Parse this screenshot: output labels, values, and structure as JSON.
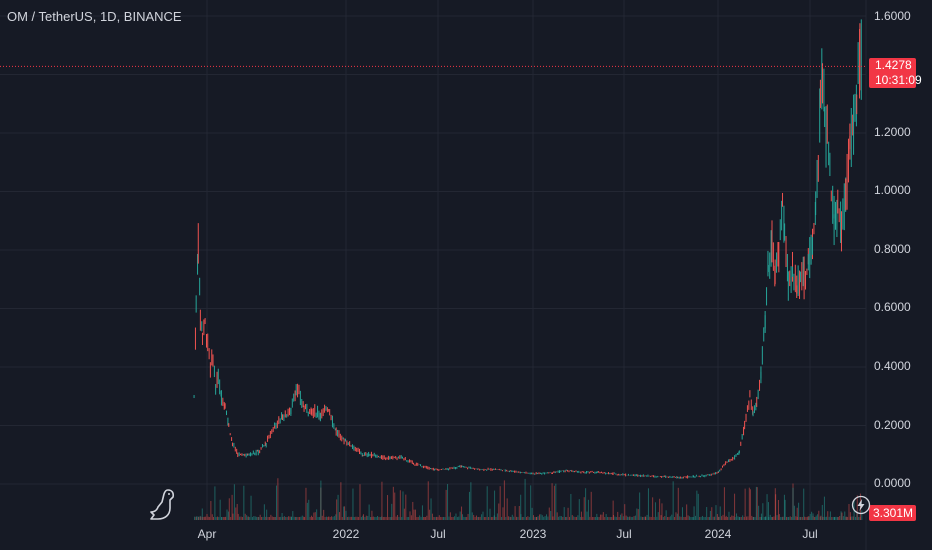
{
  "header": {
    "symbol_line": "OM / TetherUS, 1D, BINANCE"
  },
  "price_axis": {
    "ticks": [
      "1.6000",
      "1.2000",
      "1.0000",
      "0.8000",
      "0.6000",
      "0.4000",
      "0.2000",
      "0.0000"
    ],
    "last_price": "1.4278",
    "countdown": "10:31:09"
  },
  "volume": {
    "last_label": "3.301M"
  },
  "time_axis": {
    "labels": [
      "Apr",
      "2022",
      "Jul",
      "2023",
      "Jul",
      "2024",
      "Jul"
    ]
  },
  "colors": {
    "up": "#26a69a",
    "down": "#ef5350",
    "background": "#161a25",
    "grid": "#232733",
    "tag": "#f23645"
  },
  "icons": {
    "logo": "tradingview-dino-icon",
    "replay": "lightning-icon"
  },
  "chart_data": {
    "type": "candlestick",
    "title": "OM / TetherUS, 1D, BINANCE",
    "ylim": [
      -0.04,
      1.67
    ],
    "grid": true,
    "x_range": [
      "2021-03-08",
      "2024-08-30"
    ],
    "series": [
      {
        "name": "OM / TetherUS",
        "points": [
          [
            "2021-03-10",
            0.3
          ],
          [
            "2021-03-14",
            0.6
          ],
          [
            "2021-03-18",
            0.85
          ],
          [
            "2021-03-22",
            0.58
          ],
          [
            "2021-03-26",
            0.52
          ],
          [
            "2021-03-31",
            0.55
          ],
          [
            "2021-04-05",
            0.48
          ],
          [
            "2021-04-10",
            0.4
          ],
          [
            "2021-04-15",
            0.43
          ],
          [
            "2021-04-20",
            0.33
          ],
          [
            "2021-04-25",
            0.36
          ],
          [
            "2021-05-01",
            0.3
          ],
          [
            "2021-05-08",
            0.27
          ],
          [
            "2021-05-15",
            0.2
          ],
          [
            "2021-05-22",
            0.14
          ],
          [
            "2021-06-01",
            0.1
          ],
          [
            "2021-06-20",
            0.1
          ],
          [
            "2021-07-10",
            0.11
          ],
          [
            "2021-07-25",
            0.14
          ],
          [
            "2021-08-10",
            0.2
          ],
          [
            "2021-08-25",
            0.23
          ],
          [
            "2021-09-10",
            0.25
          ],
          [
            "2021-09-20",
            0.33
          ],
          [
            "2021-10-05",
            0.26
          ],
          [
            "2021-10-20",
            0.25
          ],
          [
            "2021-11-05",
            0.24
          ],
          [
            "2021-11-20",
            0.26
          ],
          [
            "2021-12-05",
            0.18
          ],
          [
            "2021-12-20",
            0.15
          ],
          [
            "2022-01-05",
            0.13
          ],
          [
            "2022-01-25",
            0.1
          ],
          [
            "2022-02-10",
            0.1
          ],
          [
            "2022-03-01",
            0.09
          ],
          [
            "2022-03-20",
            0.09
          ],
          [
            "2022-04-10",
            0.09
          ],
          [
            "2022-05-01",
            0.07
          ],
          [
            "2022-05-20",
            0.06
          ],
          [
            "2022-06-10",
            0.05
          ],
          [
            "2022-07-01",
            0.05
          ],
          [
            "2022-08-01",
            0.06
          ],
          [
            "2022-09-01",
            0.05
          ],
          [
            "2022-10-01",
            0.05
          ],
          [
            "2022-11-01",
            0.045
          ],
          [
            "2022-11-20",
            0.04
          ],
          [
            "2022-12-20",
            0.035
          ],
          [
            "2023-01-20",
            0.04
          ],
          [
            "2023-02-15",
            0.045
          ],
          [
            "2023-03-15",
            0.04
          ],
          [
            "2023-04-15",
            0.04
          ],
          [
            "2023-05-15",
            0.035
          ],
          [
            "2023-06-15",
            0.03
          ],
          [
            "2023-07-15",
            0.028
          ],
          [
            "2023-08-15",
            0.025
          ],
          [
            "2023-09-15",
            0.022
          ],
          [
            "2023-10-15",
            0.025
          ],
          [
            "2023-11-15",
            0.03
          ],
          [
            "2023-12-01",
            0.04
          ],
          [
            "2023-12-15",
            0.07
          ],
          [
            "2024-01-01",
            0.09
          ],
          [
            "2024-01-10",
            0.11
          ],
          [
            "2024-01-20",
            0.2
          ],
          [
            "2024-01-30",
            0.3
          ],
          [
            "2024-02-05",
            0.24
          ],
          [
            "2024-02-12",
            0.28
          ],
          [
            "2024-02-20",
            0.38
          ],
          [
            "2024-02-28",
            0.55
          ],
          [
            "2024-03-05",
            0.75
          ],
          [
            "2024-03-12",
            0.85
          ],
          [
            "2024-03-18",
            0.7
          ],
          [
            "2024-03-25",
            0.8
          ],
          [
            "2024-04-01",
            0.95
          ],
          [
            "2024-04-05",
            0.85
          ],
          [
            "2024-04-12",
            0.7
          ],
          [
            "2024-04-20",
            0.72
          ],
          [
            "2024-04-28",
            0.68
          ],
          [
            "2024-05-05",
            0.72
          ],
          [
            "2024-05-12",
            0.7
          ],
          [
            "2024-05-20",
            0.75
          ],
          [
            "2024-05-28",
            0.82
          ],
          [
            "2024-06-03",
            0.95
          ],
          [
            "2024-06-08",
            1.1
          ],
          [
            "2024-06-12",
            1.3
          ],
          [
            "2024-06-16",
            1.38
          ],
          [
            "2024-06-20",
            1.25
          ],
          [
            "2024-06-25",
            1.2
          ],
          [
            "2024-06-30",
            1.05
          ],
          [
            "2024-07-08",
            0.9
          ],
          [
            "2024-07-15",
            0.95
          ],
          [
            "2024-07-22",
            0.88
          ],
          [
            "2024-07-30",
            1.0
          ],
          [
            "2024-08-07",
            1.15
          ],
          [
            "2024-08-14",
            1.25
          ],
          [
            "2024-08-20",
            1.3
          ],
          [
            "2024-08-26",
            1.45
          ],
          [
            "2024-08-30",
            1.4278
          ]
        ]
      }
    ]
  }
}
